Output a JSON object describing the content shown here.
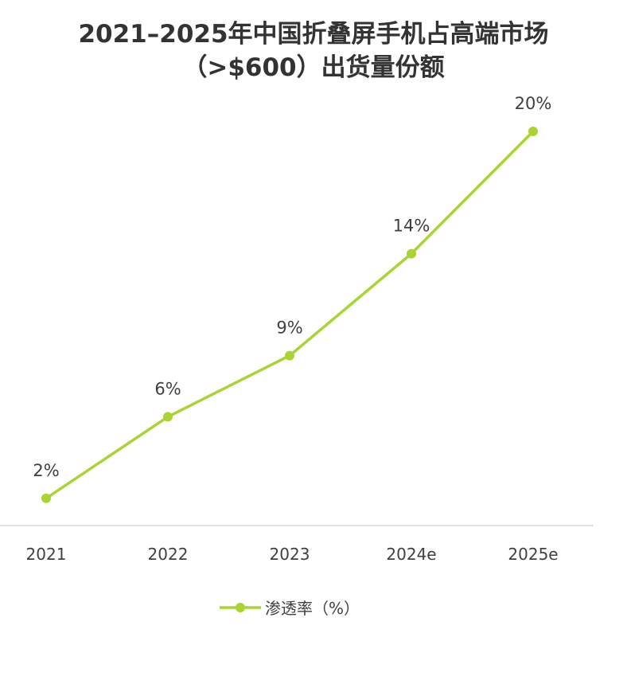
{
  "chart_data": {
    "type": "line",
    "title_lines": [
      "2021–2025年中国折叠屏手机占高端市场",
      "（>$600）出货量份额"
    ],
    "categories": [
      "2021",
      "2022",
      "2023",
      "2024e",
      "2025e"
    ],
    "series": [
      {
        "name": "渗透率（%）",
        "values": [
          2,
          6,
          9,
          14,
          20
        ],
        "data_labels": [
          "2%",
          "6%",
          "9%",
          "14%",
          "20%"
        ],
        "color": "#a9d433"
      }
    ],
    "xlabel": "",
    "ylabel": "",
    "ylim": [
      0,
      22
    ],
    "grid": false,
    "legend_position": "bottom-center",
    "axis_color": "#d9d9d9"
  }
}
